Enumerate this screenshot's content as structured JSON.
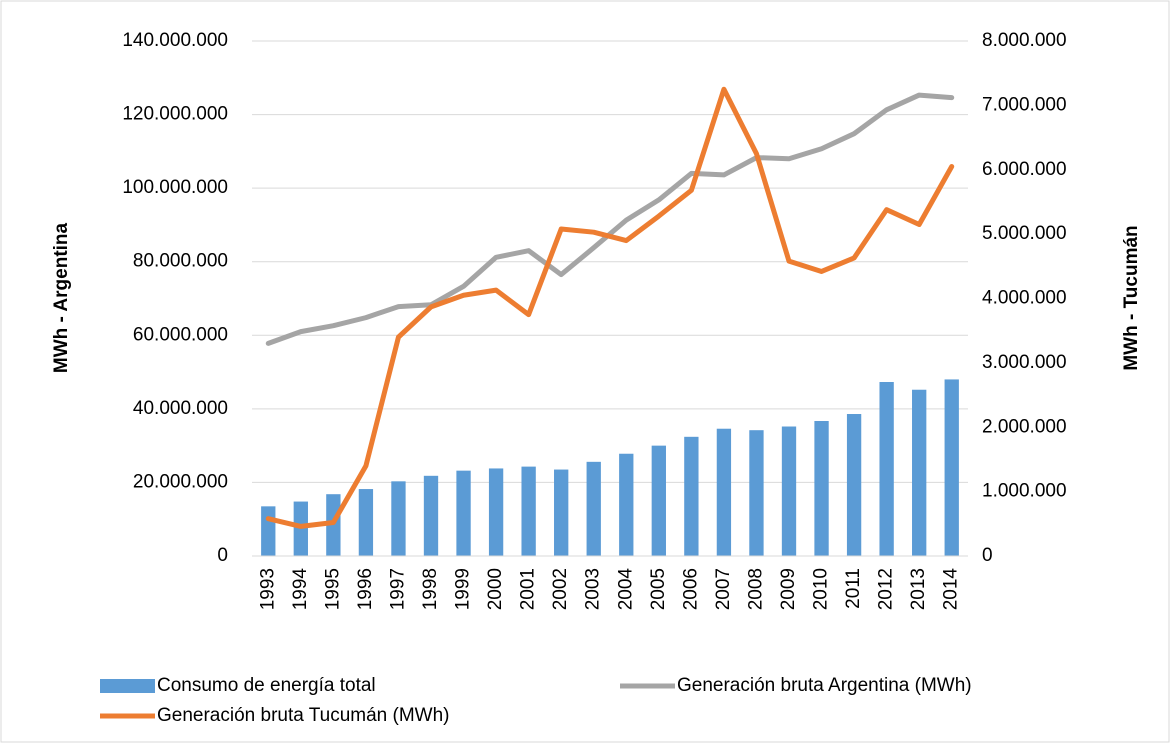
{
  "chart_data": {
    "type": "bar-line",
    "y_label": "MWh - Argentina",
    "y2_label": "MWh - Tucumán",
    "categories": [
      "1993",
      "1994",
      "1995",
      "1996",
      "1997",
      "1998",
      "1999",
      "2000",
      "2001",
      "2002",
      "2003",
      "2004",
      "2005",
      "2006",
      "2007",
      "2008",
      "2009",
      "2010",
      "2011",
      "2012",
      "2013",
      "2014"
    ],
    "series": [
      {
        "name": "Consumo de energía total",
        "type": "bar",
        "color": "#5b9bd5",
        "values": [
          13500000,
          14800000,
          16800000,
          18200000,
          20300000,
          21800000,
          23200000,
          23800000,
          24300000,
          23500000,
          25600000,
          27800000,
          30000000,
          32400000,
          34600000,
          34200000,
          35200000,
          36700000,
          38600000,
          47300000,
          45200000,
          48000000
        ]
      },
      {
        "name": "Generación bruta Argentina (MWh)",
        "type": "line",
        "color": "#a5a5a5",
        "values": [
          57800000,
          61000000,
          62600000,
          64800000,
          67800000,
          68300000,
          73300000,
          81200000,
          83000000,
          76500000,
          83800000,
          91300000,
          96800000,
          104000000,
          103600000,
          108300000,
          108000000,
          110700000,
          114800000,
          121300000,
          125300000,
          124600000
        ]
      },
      {
        "name": "Generación bruta Tucumán (MWh)",
        "type": "line",
        "color": "#ed7d31",
        "axis": "y2",
        "values": [
          580000,
          460000,
          520000,
          1400000,
          3400000,
          3870000,
          4050000,
          4130000,
          3750000,
          5080000,
          5030000,
          4900000,
          5280000,
          5680000,
          7250000,
          6250000,
          4580000,
          4420000,
          4630000,
          5380000,
          5150000,
          6050000
        ]
      }
    ],
    "ylim": [
      0,
      140000000
    ],
    "yticks": [
      0,
      {
        "value": 20000000,
        "label": "20.000.000"
      },
      {
        "value": 40000000,
        "label": "40.000.000"
      },
      {
        "value": 60000000,
        "label": "60.000.000"
      },
      {
        "value": 80000000,
        "label": "80.000.000"
      },
      {
        "value": 100000000,
        "label": "100.000.000"
      },
      {
        "value": 120000000,
        "label": "120.000.000"
      },
      {
        "value": 140000000,
        "label": "140.000.000"
      }
    ],
    "y2lim": [
      0,
      8000000
    ],
    "y2ticks": [
      0,
      {
        "value": 1000000,
        "label": "1.000.000"
      },
      {
        "value": 2000000,
        "label": "2.000.000"
      },
      {
        "value": 3000000,
        "label": "3.000.000"
      },
      {
        "value": 4000000,
        "label": "4.000.000"
      },
      {
        "value": 5000000,
        "label": "5.000.000"
      },
      {
        "value": 6000000,
        "label": "6.000.000"
      },
      {
        "value": 7000000,
        "label": "7.000.000"
      },
      {
        "value": 8000000,
        "label": "8.000.000"
      }
    ],
    "grid": true
  }
}
